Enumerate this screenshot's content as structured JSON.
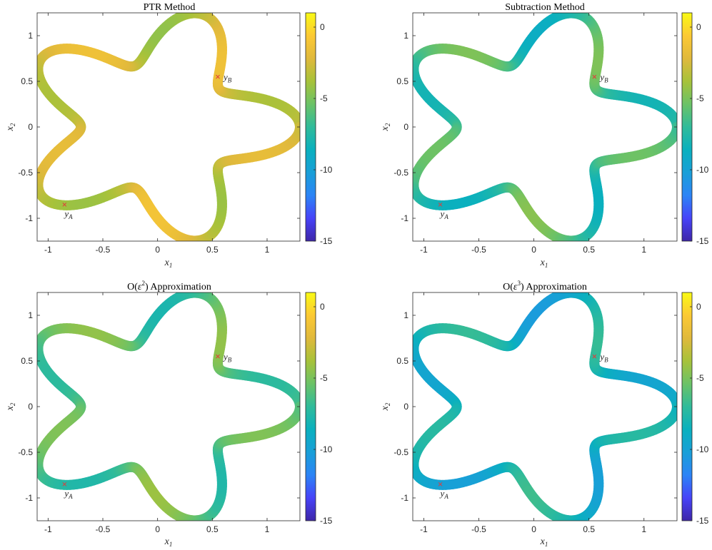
{
  "chart_data": [
    {
      "type": "heatmap",
      "title": "PTR Method",
      "xlabel": "x",
      "xlabel_sub": "1",
      "ylabel": "x",
      "ylabel_sub": "2",
      "xlim": [
        -1.1,
        1.3
      ],
      "ylim": [
        -1.25,
        1.25
      ],
      "xticks": [
        -1,
        -0.5,
        0,
        0.5,
        1
      ],
      "xtick_labels": [
        "-1",
        "-0.5",
        "0",
        "0.5",
        "1"
      ],
      "yticks": [
        -1,
        -0.5,
        0,
        0.5,
        1
      ],
      "ytick_labels": [
        "-1",
        "-0.5",
        "0",
        "0.5",
        "1"
      ],
      "colorbar": {
        "min": -15,
        "max": 1,
        "ticks": [
          0,
          -5,
          -10,
          -15
        ],
        "tick_labels": [
          "0",
          "-5",
          "-10",
          "-15"
        ]
      },
      "curve": {
        "type": "star",
        "petals": 5,
        "mean_radius": 1.0,
        "amplitude": 0.3,
        "phase": 0
      },
      "value_model": {
        "base": -1.5,
        "dip": 2.5
      },
      "points": [
        {
          "name": "y",
          "sub": "A",
          "x": -0.85,
          "y": -0.85
        },
        {
          "name": "y",
          "sub": "B",
          "x": 0.55,
          "y": 0.55
        }
      ]
    },
    {
      "type": "heatmap",
      "title": "Subtraction Method",
      "xlabel": "x",
      "xlabel_sub": "1",
      "ylabel": "x",
      "ylabel_sub": "2",
      "xlim": [
        -1.1,
        1.3
      ],
      "ylim": [
        -1.25,
        1.25
      ],
      "xticks": [
        -1,
        -0.5,
        0,
        0.5,
        1
      ],
      "xtick_labels": [
        "-1",
        "-0.5",
        "0",
        "0.5",
        "1"
      ],
      "yticks": [
        -1,
        -0.5,
        0,
        0.5,
        1
      ],
      "ytick_labels": [
        "-1",
        "-0.5",
        "0",
        "0.5",
        "1"
      ],
      "colorbar": {
        "min": -15,
        "max": 1,
        "ticks": [
          0,
          -5,
          -10,
          -15
        ],
        "tick_labels": [
          "0",
          "-5",
          "-10",
          "-15"
        ]
      },
      "curve": {
        "type": "star",
        "petals": 5,
        "mean_radius": 1.0,
        "amplitude": 0.3,
        "phase": 0
      },
      "value_model": {
        "base": -5.0,
        "dip": 3.5
      },
      "points": [
        {
          "name": "y",
          "sub": "A",
          "x": -0.85,
          "y": -0.85
        },
        {
          "name": "y",
          "sub": "B",
          "x": 0.55,
          "y": 0.55
        }
      ]
    },
    {
      "type": "heatmap",
      "title_prefix": "O(",
      "title_eps": "ε",
      "title_power": "2",
      "title_suffix": ") Approximation",
      "xlabel": "x",
      "xlabel_sub": "1",
      "ylabel": "x",
      "ylabel_sub": "2",
      "xlim": [
        -1.1,
        1.3
      ],
      "ylim": [
        -1.25,
        1.25
      ],
      "xticks": [
        -1,
        -0.5,
        0,
        0.5,
        1
      ],
      "xtick_labels": [
        "-1",
        "-0.5",
        "0",
        "0.5",
        "1"
      ],
      "yticks": [
        -1,
        -0.5,
        0,
        0.5,
        1
      ],
      "ytick_labels": [
        "-1",
        "-0.5",
        "0",
        "0.5",
        "1"
      ],
      "colorbar": {
        "min": -15,
        "max": 1,
        "ticks": [
          0,
          -5,
          -10,
          -15
        ],
        "tick_labels": [
          "0",
          "-5",
          "-10",
          "-15"
        ]
      },
      "curve": {
        "type": "star",
        "petals": 5,
        "mean_radius": 1.0,
        "amplitude": 0.3,
        "phase": 0
      },
      "value_model": {
        "base": -4.5,
        "dip": 3.0
      },
      "points": [
        {
          "name": "y",
          "sub": "A",
          "x": -0.85,
          "y": -0.85
        },
        {
          "name": "y",
          "sub": "B",
          "x": 0.55,
          "y": 0.55
        }
      ]
    },
    {
      "type": "heatmap",
      "title_prefix": "O(",
      "title_eps": "ε",
      "title_power": "3",
      "title_suffix": ") Approximation",
      "xlabel": "x",
      "xlabel_sub": "1",
      "ylabel": "x",
      "ylabel_sub": "2",
      "xlim": [
        -1.1,
        1.3
      ],
      "ylim": [
        -1.25,
        1.25
      ],
      "xticks": [
        -1,
        -0.5,
        0,
        0.5,
        1
      ],
      "xtick_labels": [
        "-1",
        "-0.5",
        "0",
        "0.5",
        "1"
      ],
      "yticks": [
        -1,
        -0.5,
        0,
        0.5,
        1
      ],
      "ytick_labels": [
        "-1",
        "-0.5",
        "0",
        "0.5",
        "1"
      ],
      "colorbar": {
        "min": -15,
        "max": 1,
        "ticks": [
          0,
          -5,
          -10,
          -15
        ],
        "tick_labels": [
          "0",
          "-5",
          "-10",
          "-15"
        ]
      },
      "curve": {
        "type": "star",
        "petals": 5,
        "mean_radius": 1.0,
        "amplitude": 0.3,
        "phase": 0
      },
      "value_model": {
        "base": -7.0,
        "dip": 3.0
      },
      "points": [
        {
          "name": "y",
          "sub": "A",
          "x": -0.85,
          "y": -0.85
        },
        {
          "name": "y",
          "sub": "B",
          "x": 0.55,
          "y": 0.55
        }
      ]
    }
  ],
  "colors": {
    "marker": "#e23a3a",
    "axis": "#262626",
    "colormap": [
      "#3e26a8",
      "#4743f8",
      "#2c84f6",
      "#199fd8",
      "#0ab0be",
      "#30bb9a",
      "#6bc267",
      "#a7c23a",
      "#e0b93c",
      "#fcc934",
      "#f9fa15"
    ]
  }
}
